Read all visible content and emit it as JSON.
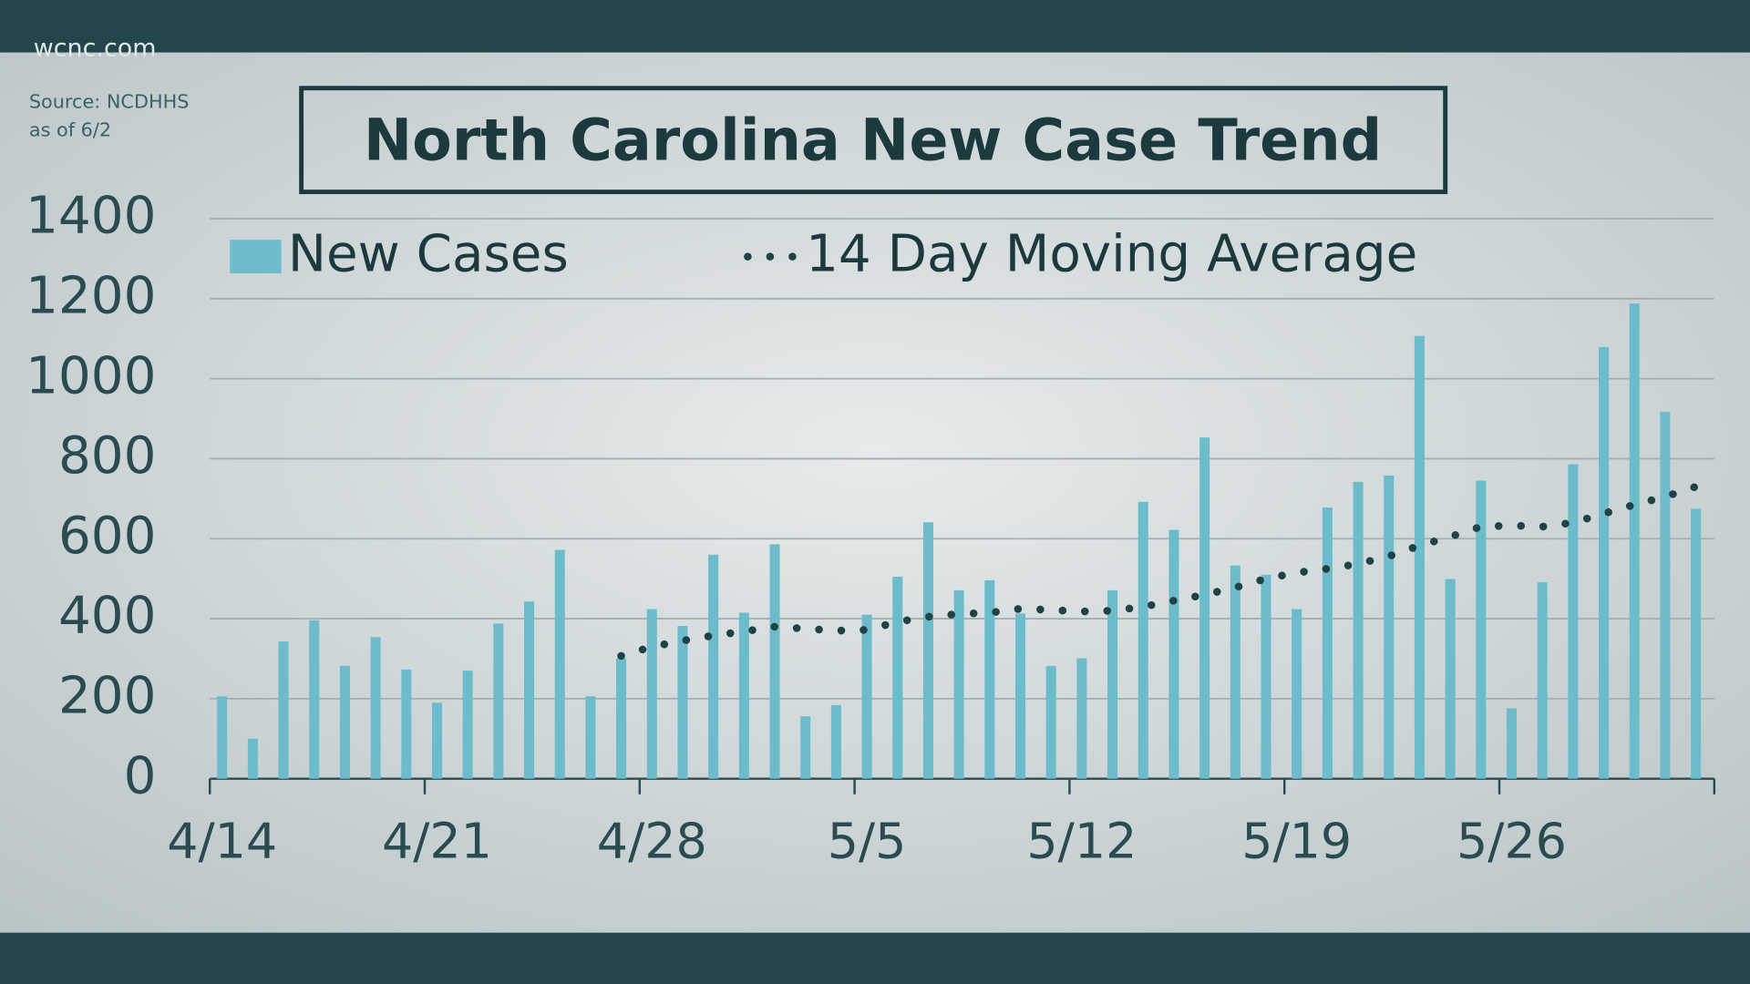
{
  "brand": "wcnc.com",
  "source": "Source: NCDHHS",
  "as_of": "as of 6/2",
  "chart_data": {
    "type": "bar",
    "title": "North Carolina New Case Trend",
    "categories": [
      "4/14",
      null,
      null,
      null,
      null,
      null,
      null,
      "4/21",
      null,
      null,
      null,
      null,
      null,
      null,
      "4/28",
      null,
      null,
      null,
      null,
      null,
      null,
      "5/5",
      null,
      null,
      null,
      null,
      null,
      null,
      "5/12",
      null,
      null,
      null,
      null,
      null,
      null,
      "5/19",
      null,
      null,
      null,
      null,
      null,
      null,
      "5/26",
      null,
      null,
      null,
      null,
      null,
      null
    ],
    "series": [
      {
        "name": "New Cases",
        "type": "bar",
        "color": "#6cbccb",
        "values": [
          206,
          100,
          343,
          396,
          282,
          354,
          273,
          190,
          270,
          388,
          443,
          572,
          206,
          301,
          424,
          382,
          560,
          415,
          586,
          156,
          184,
          410,
          505,
          641,
          471,
          496,
          413,
          282,
          301,
          471,
          692,
          622,
          853,
          533,
          510,
          424,
          678,
          742,
          758,
          1107,
          499,
          745,
          176,
          491,
          786,
          1079,
          1188,
          917,
          675
        ]
      },
      {
        "name": "14 Day Moving Average",
        "type": "line",
        "color": "#1f4245",
        "values": [
          null,
          null,
          null,
          null,
          null,
          null,
          null,
          null,
          null,
          null,
          null,
          null,
          null,
          307,
          330,
          345,
          358,
          368,
          380,
          375,
          370,
          372,
          392,
          405,
          412,
          415,
          425,
          422,
          418,
          420,
          430,
          445,
          460,
          478,
          500,
          515,
          525,
          537,
          556,
          583,
          605,
          630,
          633,
          630,
          640,
          663,
          685,
          705,
          730
        ]
      }
    ],
    "ylim": [
      0,
      1400
    ],
    "yticks": [
      0,
      200,
      400,
      600,
      800,
      1000,
      1200,
      1400
    ],
    "grid": true,
    "legend": "top"
  }
}
